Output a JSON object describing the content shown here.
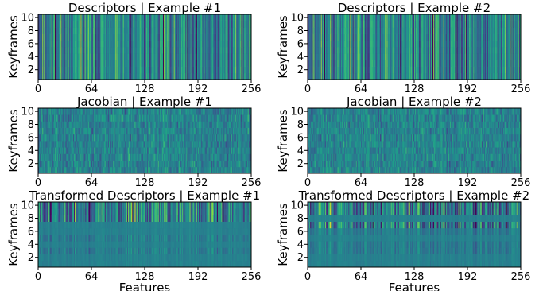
{
  "chart_data": [
    {
      "type": "heatmap",
      "title": "Descriptors | Example #1",
      "xlabel": "",
      "ylabel": "Keyframes",
      "xlim": [
        0,
        256
      ],
      "ylim": [
        0,
        10
      ],
      "xticks": [
        "0",
        "64",
        "128",
        "192",
        "256"
      ],
      "yticks": [
        "2",
        "4",
        "6",
        "8",
        "10"
      ],
      "n_features": 256,
      "n_keyframes": 10,
      "colormap": "viridis",
      "pattern": "vertical-stripes",
      "seed": 11
    },
    {
      "type": "heatmap",
      "title": "Descriptors | Example #2",
      "xlabel": "",
      "ylabel": "Keyframes",
      "xlim": [
        0,
        256
      ],
      "ylim": [
        0,
        10
      ],
      "xticks": [
        "0",
        "64",
        "128",
        "192",
        "256"
      ],
      "yticks": [
        "2",
        "4",
        "6",
        "8",
        "10"
      ],
      "n_features": 256,
      "n_keyframes": 10,
      "colormap": "viridis",
      "pattern": "vertical-stripes",
      "seed": 11
    },
    {
      "type": "heatmap",
      "title": "Jacobian | Example #1",
      "xlabel": "",
      "ylabel": "Keyframes",
      "xlim": [
        0,
        256
      ],
      "ylim": [
        0,
        10
      ],
      "xticks": [
        "0",
        "64",
        "128",
        "192",
        "256"
      ],
      "yticks": [
        "2",
        "4",
        "6",
        "8",
        "10"
      ],
      "n_features": 256,
      "n_keyframes": 10,
      "colormap": "viridis",
      "pattern": "noise",
      "seed": 23
    },
    {
      "type": "heatmap",
      "title": "Jacobian | Example #2",
      "xlabel": "",
      "ylabel": "Keyframes",
      "xlim": [
        0,
        256
      ],
      "ylim": [
        0,
        10
      ],
      "xticks": [
        "0",
        "64",
        "128",
        "192",
        "256"
      ],
      "yticks": [
        "2",
        "4",
        "6",
        "8",
        "10"
      ],
      "n_features": 256,
      "n_keyframes": 10,
      "colormap": "viridis",
      "pattern": "noise",
      "seed": 37
    },
    {
      "type": "heatmap",
      "title": "Transformed Descriptors | Example #1",
      "xlabel": "Features",
      "ylabel": "Keyframes",
      "xlim": [
        0,
        256
      ],
      "ylim": [
        0,
        10
      ],
      "xticks": [
        "0",
        "64",
        "128",
        "192",
        "256"
      ],
      "yticks": [
        "2",
        "4",
        "6",
        "8",
        "10"
      ],
      "n_features": 256,
      "n_keyframes": 10,
      "colormap": "viridis",
      "pattern": "top-rows-strong",
      "strong_rows": [
        10,
        9,
        8
      ],
      "banded_rows": [
        5,
        3
      ],
      "seed": 51
    },
    {
      "type": "heatmap",
      "title": "Transformed Descriptors | Example #2",
      "xlabel": "Features",
      "ylabel": "Keyframes",
      "xlim": [
        0,
        256
      ],
      "ylim": [
        0,
        10
      ],
      "xticks": [
        "0",
        "64",
        "128",
        "192",
        "256"
      ],
      "yticks": [
        "2",
        "4",
        "6",
        "8",
        "10"
      ],
      "n_features": 256,
      "n_keyframes": 10,
      "colormap": "viridis",
      "pattern": "top-rows-strong",
      "strong_rows": [
        10,
        9,
        7
      ],
      "banded_rows": [
        6,
        4,
        3
      ],
      "seed": 67
    }
  ]
}
